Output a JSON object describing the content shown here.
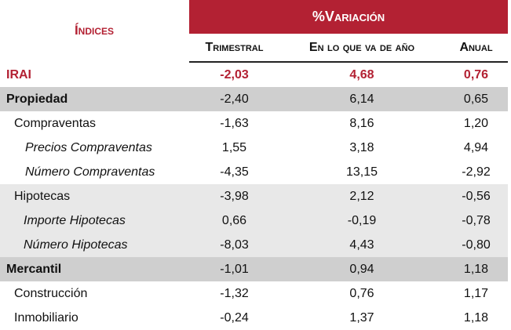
{
  "header": {
    "indices_label": "Índices",
    "variation_label": "%Variación",
    "col_trimestral": "Trimestral",
    "col_ytd": "En lo que va de año",
    "col_anual": "Anual"
  },
  "rows": [
    {
      "label": "IRAI",
      "trimestral": "-2,03",
      "ytd": "4,68",
      "anual": "0,76"
    },
    {
      "label": "Propiedad",
      "trimestral": "-2,40",
      "ytd": "6,14",
      "anual": "0,65"
    },
    {
      "label": "Compraventas",
      "trimestral": "-1,63",
      "ytd": "8,16",
      "anual": "1,20"
    },
    {
      "label": "Precios Compraventas",
      "trimestral": "1,55",
      "ytd": "3,18",
      "anual": "4,94"
    },
    {
      "label": "Número Compraventas",
      "trimestral": "-4,35",
      "ytd": "13,15",
      "anual": "-2,92"
    },
    {
      "label": "Hipotecas",
      "trimestral": "-3,98",
      "ytd": "2,12",
      "anual": "-0,56"
    },
    {
      "label": "Importe Hipotecas",
      "trimestral": "0,66",
      "ytd": "-0,19",
      "anual": "-0,78"
    },
    {
      "label": "Número Hipotecas",
      "trimestral": "-8,03",
      "ytd": "4,43",
      "anual": "-0,80"
    },
    {
      "label": "Mercantil",
      "trimestral": "-1,01",
      "ytd": "0,94",
      "anual": "1,18"
    },
    {
      "label": "Construcción",
      "trimestral": "-1,32",
      "ytd": "0,76",
      "anual": "1,17"
    },
    {
      "label": "Inmobiliario",
      "trimestral": "-0,24",
      "ytd": "1,37",
      "anual": "1,18"
    }
  ],
  "colors": {
    "accent": "#b32133",
    "shade": "#e8e8e8",
    "dark_shade": "#cfcfcf"
  }
}
